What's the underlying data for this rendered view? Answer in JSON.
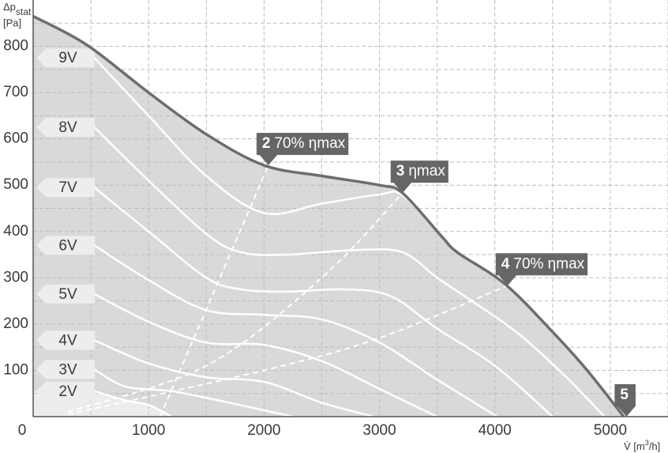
{
  "chart_data": {
    "type": "line",
    "y_label": {
      "symbol": "Δp",
      "subscript": "stat",
      "unit": "[Pa]"
    },
    "x_label": {
      "symbol": "V̇",
      "unit_pre": " [m",
      "sup": "3",
      "unit_post": "/h]"
    },
    "xlim": [
      0,
      5500
    ],
    "ylim": [
      0,
      900
    ],
    "xticks": [
      0,
      1000,
      2000,
      3000,
      4000,
      5000
    ],
    "yticks": [
      100,
      200,
      300,
      400,
      500,
      600,
      700,
      800
    ],
    "xminor": [
      500,
      1500,
      2500,
      3500,
      4500,
      5500
    ],
    "yminor": [
      50,
      150,
      250,
      350,
      450,
      550,
      650,
      750,
      850
    ],
    "grid": true,
    "envelope": {
      "color": "#6d6d6d",
      "fill": "#d9d9d9",
      "x": [
        0,
        465,
        1000,
        1500,
        2000,
        2500,
        3000,
        3200,
        3540,
        3680,
        4090,
        4500,
        4800,
        5116
      ],
      "values": [
        865,
        803,
        700,
        610,
        543,
        520,
        500,
        483,
        389,
        354,
        286,
        183,
        100,
        0
      ]
    },
    "series": [
      {
        "name": "9V",
        "color": "#ffffff",
        "x": [
          530,
          1000,
          1500,
          2000,
          2500,
          3000,
          3200,
          3540,
          3680,
          4090,
          4500,
          4800,
          5116
        ],
        "values": [
          775,
          650,
          520,
          440,
          460,
          480,
          478,
          389,
          354,
          286,
          183,
          100,
          0
        ]
      },
      {
        "name": "8V",
        "color": "#ffffff",
        "x": [
          530,
          1000,
          1500,
          1800,
          2200,
          2800,
          3200,
          3500,
          3800,
          4200,
          4600,
          4950
        ],
        "values": [
          625,
          510,
          395,
          355,
          350,
          360,
          355,
          300,
          250,
          180,
          90,
          0
        ]
      },
      {
        "name": "7V",
        "color": "#ffffff",
        "x": [
          530,
          1000,
          1500,
          1800,
          2200,
          2700,
          3100,
          3500,
          4000,
          4500
        ],
        "values": [
          495,
          400,
          300,
          275,
          270,
          275,
          260,
          190,
          110,
          0
        ]
      },
      {
        "name": "6V",
        "color": "#ffffff",
        "x": [
          530,
          1000,
          1500,
          2000,
          2500,
          3000,
          3500,
          4020
        ],
        "values": [
          370,
          295,
          230,
          220,
          210,
          160,
          80,
          0
        ]
      },
      {
        "name": "5V",
        "color": "#ffffff",
        "x": [
          530,
          1000,
          1500,
          2000,
          2500,
          3000,
          3500
        ],
        "values": [
          265,
          205,
          160,
          155,
          120,
          60,
          0
        ]
      },
      {
        "name": "4V",
        "color": "#ffffff",
        "x": [
          530,
          1000,
          1500,
          2000,
          2500,
          2950
        ],
        "values": [
          165,
          115,
          85,
          75,
          30,
          0
        ]
      },
      {
        "name": "3V",
        "color": "#ffffff",
        "x": [
          530,
          800,
          1200,
          1700,
          2250
        ],
        "values": [
          102,
          65,
          55,
          30,
          0
        ]
      },
      {
        "name": "2V",
        "color": "#ffffff",
        "x": [
          530,
          800,
          1000,
          1200
        ],
        "values": [
          55,
          35,
          25,
          0
        ]
      }
    ],
    "system_lines": [
      {
        "x": [
          1100,
          2038
        ],
        "values": [
          0,
          543
        ]
      },
      {
        "x": [
          300,
          1500,
          2500,
          3200
        ],
        "values": [
          10,
          110,
          300,
          483
        ]
      },
      {
        "x": [
          300,
          2000,
          3000,
          4110
        ],
        "values": [
          5,
          100,
          170,
          283
        ]
      }
    ],
    "points": [
      {
        "number": "2",
        "text": "70% ηmax",
        "x": 2038,
        "y": 543
      },
      {
        "number": "3",
        "text": "ηmax",
        "x": 3200,
        "y": 483
      },
      {
        "number": "4",
        "text": "70% ηmax",
        "x": 4110,
        "y": 283
      },
      {
        "number": "5",
        "x": 5140,
        "y": 0
      }
    ]
  }
}
